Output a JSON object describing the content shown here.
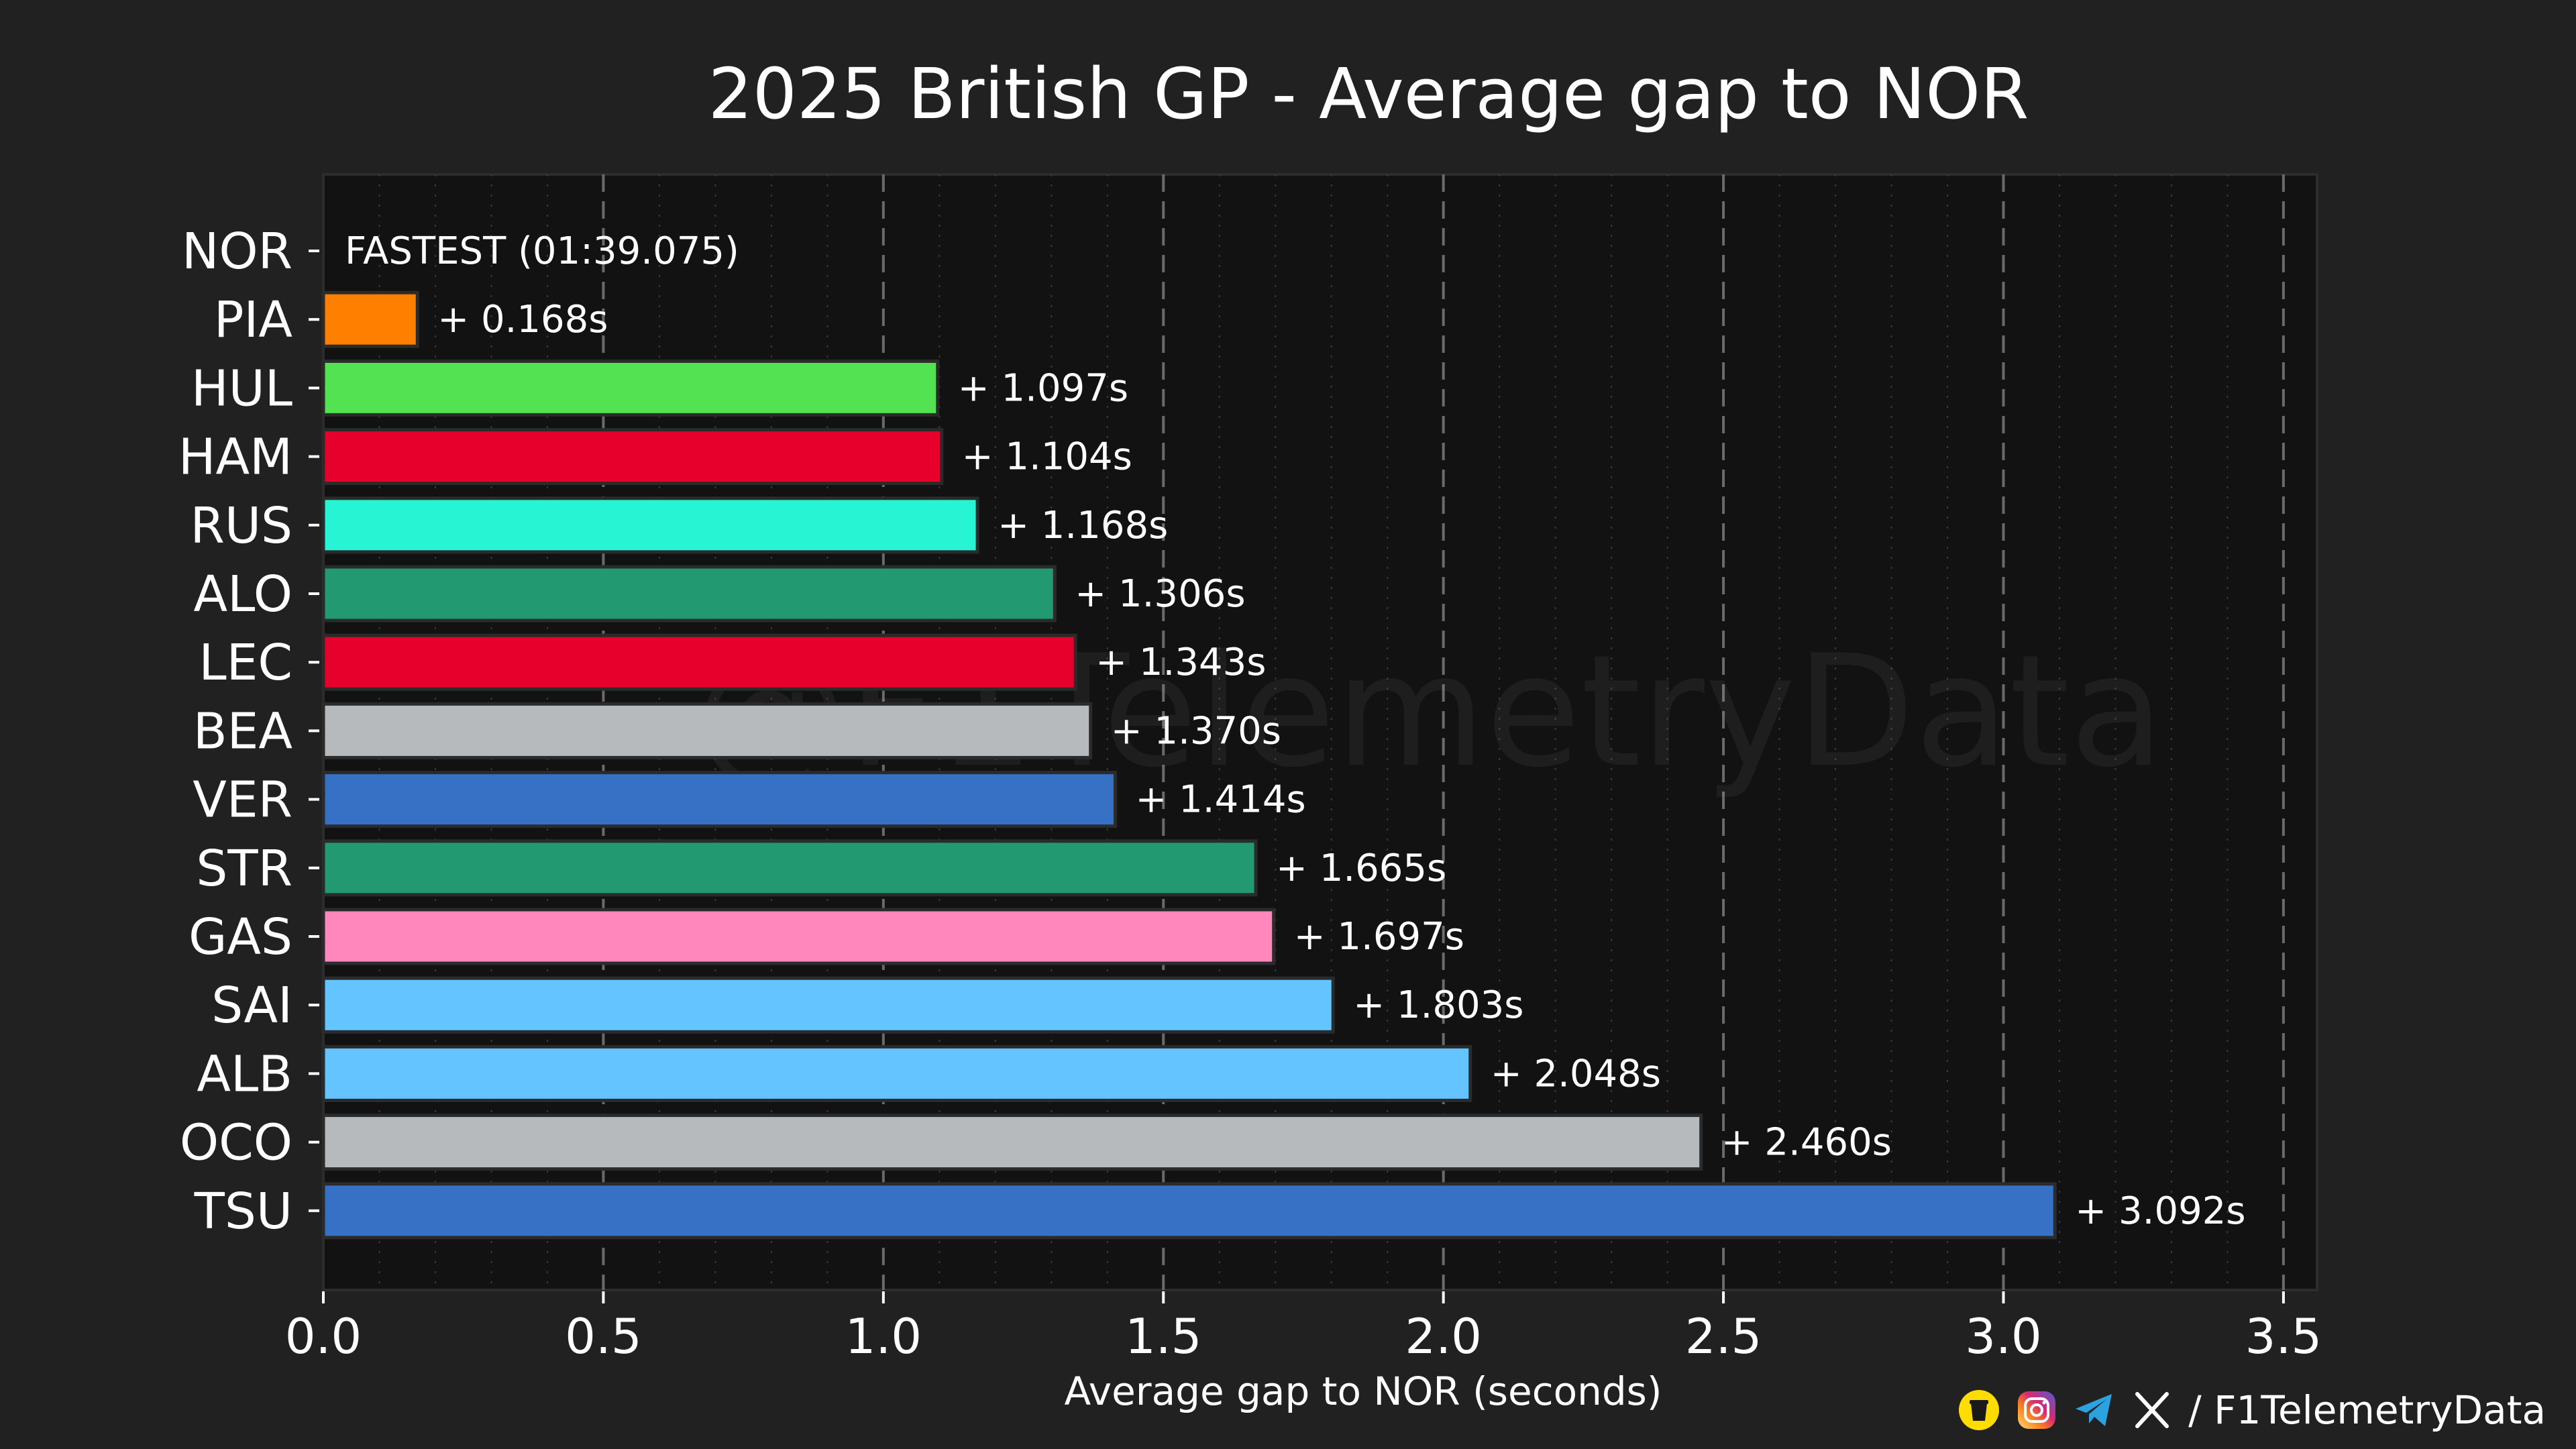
{
  "chart_data": {
    "type": "bar",
    "orientation": "horizontal",
    "title": "2025 British GP - Average gap to NOR",
    "xlabel": "Average gap to NOR (seconds)",
    "xlim": [
      0,
      3.56
    ],
    "x_ticks": [
      "0.0",
      "0.5",
      "1.0",
      "1.5",
      "2.0",
      "2.5",
      "3.0",
      "3.5"
    ],
    "x_tick_values": [
      0,
      0.5,
      1,
      1.5,
      2,
      2.5,
      3,
      3.5
    ],
    "grid": "vertical dashed major, dotted minor",
    "categories": [
      "NOR",
      "PIA",
      "HUL",
      "HAM",
      "RUS",
      "ALO",
      "LEC",
      "BEA",
      "VER",
      "STR",
      "GAS",
      "SAI",
      "ALB",
      "OCO",
      "TSU"
    ],
    "values": [
      0,
      0.168,
      1.097,
      1.104,
      1.168,
      1.306,
      1.343,
      1.37,
      1.414,
      1.665,
      1.697,
      1.803,
      2.048,
      2.46,
      3.092
    ],
    "labels": [
      "FASTEST (01:39.075)",
      "+ 0.168s",
      "+ 1.097s",
      "+ 1.104s",
      "+ 1.168s",
      "+ 1.306s",
      "+ 1.343s",
      "+ 1.370s",
      "+ 1.414s",
      "+ 1.665s",
      "+ 1.697s",
      "+ 1.803s",
      "+ 2.048s",
      "+ 2.460s",
      "+ 3.092s"
    ],
    "colors": [
      "#ff8000",
      "#ff8000",
      "#52e252",
      "#e8002d",
      "#27f4d2",
      "#229971",
      "#e8002d",
      "#b6babd",
      "#3671c6",
      "#229971",
      "#ff87bc",
      "#64c4ff",
      "#64c4ff",
      "#b6babd",
      "#3671c6"
    ]
  },
  "watermark": "@F1TelemetryData",
  "footer": {
    "handle": "/ F1TelemetryData",
    "icons": [
      "buymeacoffee-icon",
      "instagram-icon",
      "telegram-icon",
      "x-icon"
    ]
  },
  "theme": {
    "background": "#212121",
    "plot_background": "#121212",
    "text": "#ffffff"
  }
}
